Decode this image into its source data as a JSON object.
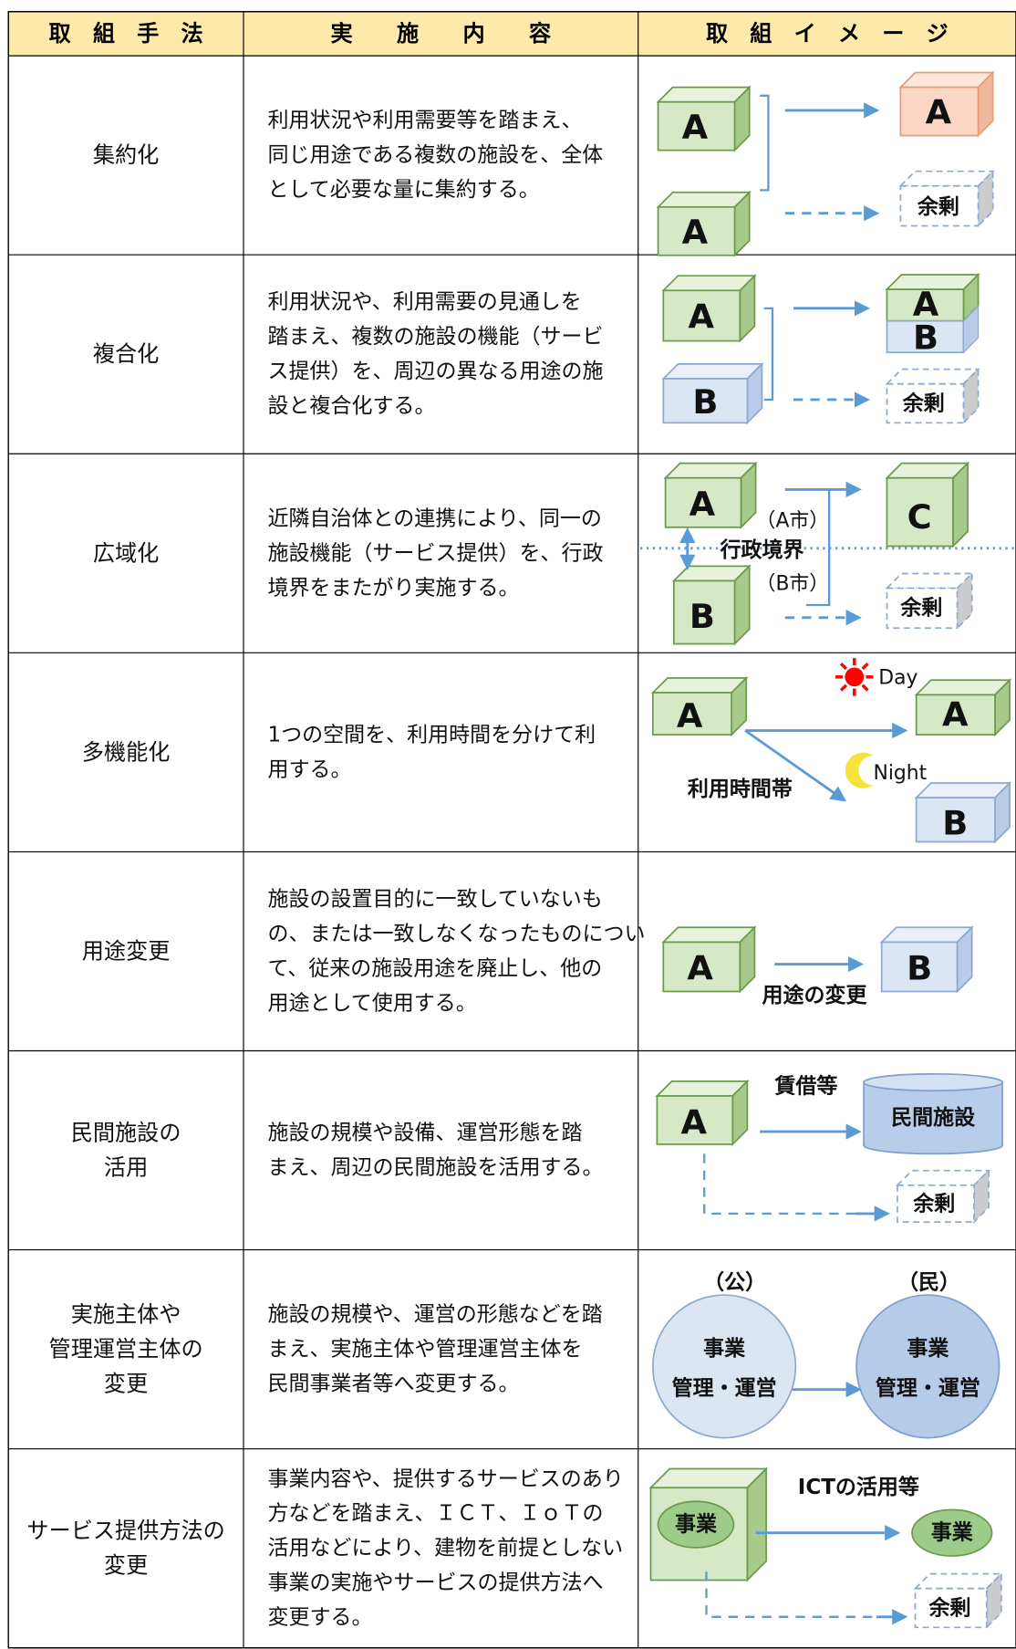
{
  "header": [
    "取　組　手　法",
    "実　　施　　内　　容",
    "取　組　イ　メ　ー　ジ"
  ],
  "rows": [
    {
      "method": [
        "集約化"
      ],
      "content": [
        "利用状況や利用需要等を踏まえ、",
        "同じ用途である複数の施設を、全体",
        "として必要な量に集約する。"
      ],
      "image": [
        "A",
        "A",
        "A",
        "余剰"
      ]
    },
    {
      "method": [
        "複合化"
      ],
      "content": [
        "利用状況や、利用需要の見通しを",
        "踏まえ、複数の施設の機能（サービ",
        "ス提供）を、周辺の異なる用途の施",
        "設と複合化する。"
      ],
      "image": [
        "A",
        "B",
        "A",
        "B",
        "余剰"
      ]
    },
    {
      "method": [
        "広域化"
      ],
      "content": [
        "近隣自治体との連携により、同一の",
        "施設機能（サービス提供）を、行政",
        "境界をまたがり実施する。"
      ],
      "image": [
        "A",
        "B",
        "C",
        "（A市）",
        "行政境界",
        "（B市）",
        "余剰"
      ]
    },
    {
      "method": [
        "多機能化"
      ],
      "content": [
        "1つの空間を、利用時間を分けて利",
        "用する。"
      ],
      "image": [
        "A",
        "Day",
        "Night",
        "A",
        "B",
        "利用時間帯"
      ]
    },
    {
      "method": [
        "用途変更"
      ],
      "content": [
        "施設の設置目的に一致していないも",
        "の、または一致しなくなったものについ",
        "て、従来の施設用途を廃止し、他の",
        "用途として使用する。"
      ],
      "image": [
        "A",
        "B",
        "用途の変更"
      ]
    },
    {
      "method": [
        "民間施設の",
        "活用"
      ],
      "content": [
        "施設の規模や設備、運営形態を踏",
        "まえ、周辺の民間施設を活用する。"
      ],
      "image": [
        "A",
        "賃借等",
        "民間施設",
        "余剰"
      ]
    },
    {
      "method": [
        "実施主体や",
        "管理運営主体の",
        "変更"
      ],
      "content": [
        "施設の規模や、運営の形態などを踏",
        "まえ、実施主体や管理運営主体を",
        "民間事業者等へ変更する。"
      ],
      "image": [
        "（公）",
        "（民）",
        "事業",
        "管理・運営",
        "事業",
        "管理・運営"
      ]
    },
    {
      "method": [
        "サービス提供方法の",
        "変更"
      ],
      "content": [
        "事業内容や、提供するサービスのあり",
        "方などを踏まえ、ＩＣＴ、ＩｏＴの",
        "活用などにより、建物を前提としない",
        "事業の実施やサービスの提供方法へ",
        "変更する。"
      ],
      "image": [
        "事業",
        "ICTの活用等",
        "事業",
        "余剰"
      ]
    }
  ]
}
